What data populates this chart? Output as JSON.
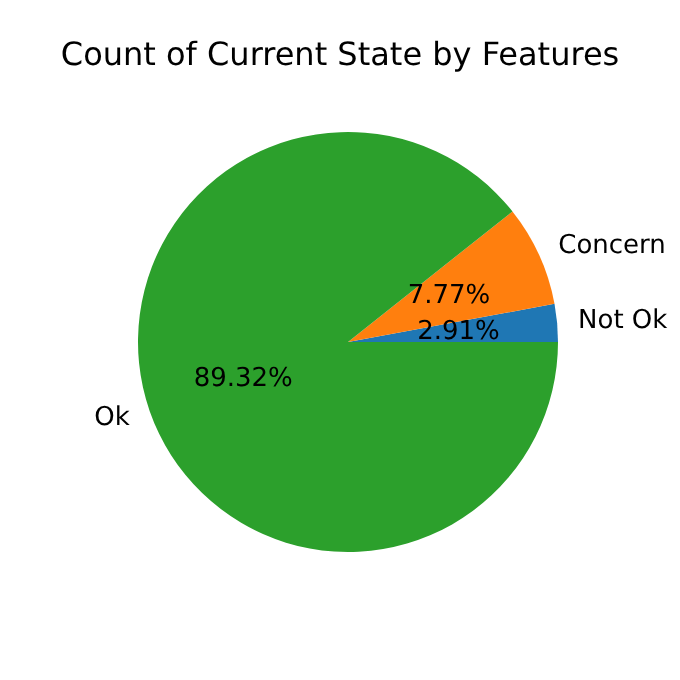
{
  "chart_data": {
    "type": "pie",
    "title": "Count of Current State by Features",
    "categories": [
      "Not Ok",
      "Concern",
      "Ok"
    ],
    "values": [
      2.91,
      7.77,
      89.32
    ],
    "colors": [
      "#1f77b4",
      "#ff7f0e",
      "#2ca02c"
    ],
    "value_labels": [
      "2.91%",
      "7.77%",
      "89.32%"
    ]
  }
}
